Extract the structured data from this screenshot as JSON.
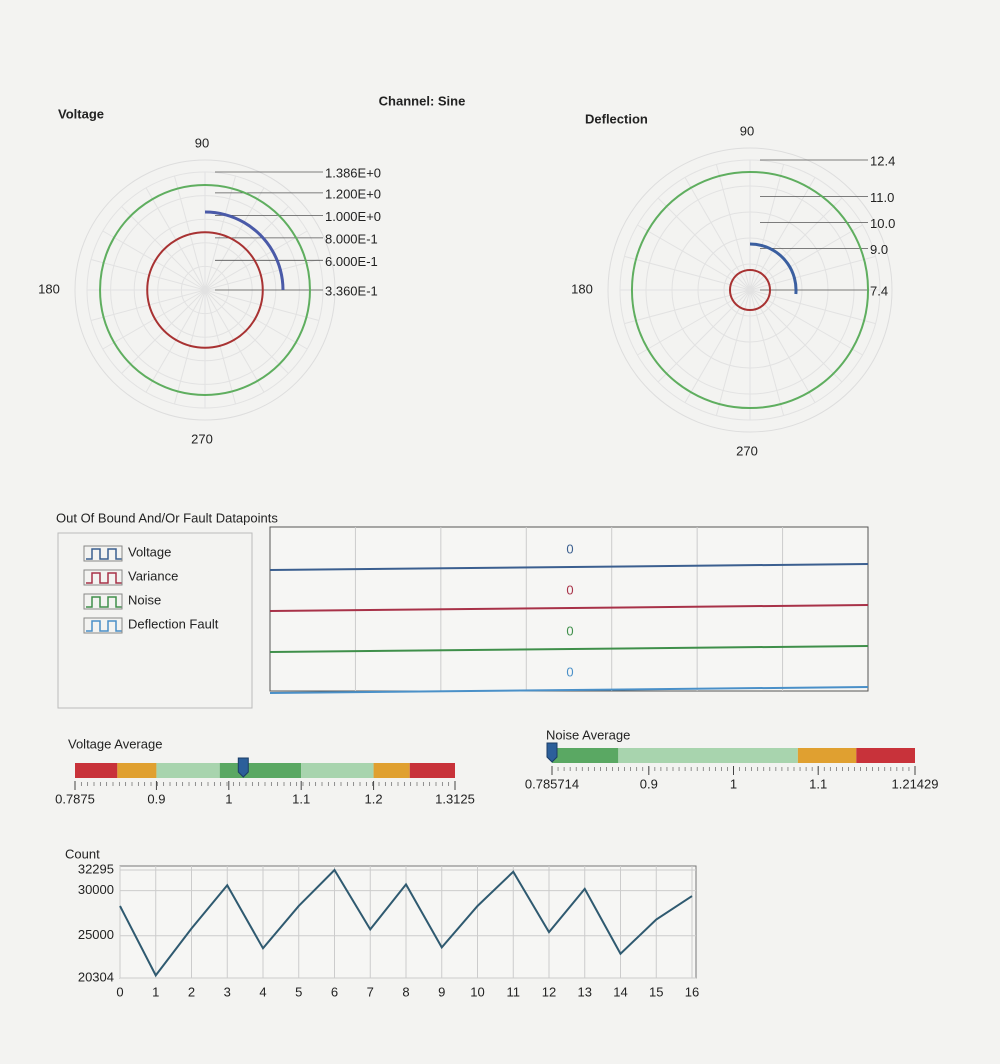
{
  "header": {
    "channel": "Channel: Sine"
  },
  "chart_data": [
    {
      "type": "polar",
      "title": "Voltage",
      "angle_ticks": [
        90,
        180,
        270
      ],
      "rlim": [
        0.336,
        1.386
      ],
      "rticks": [
        {
          "value": 1.386,
          "label": "1.386E+0"
        },
        {
          "value": 1.2,
          "label": "1.200E+0"
        },
        {
          "value": 1.0,
          "label": "1.000E+0"
        },
        {
          "value": 0.8,
          "label": "8.000E-1"
        },
        {
          "value": 0.6,
          "label": "6.000E-1"
        },
        {
          "value": 0.336,
          "label": "3.360E-1"
        }
      ],
      "series": [
        {
          "color": "#5fae5f",
          "theta": [
            0,
            30,
            60,
            90,
            120,
            150,
            180,
            210,
            240,
            270,
            300,
            330,
            360
          ],
          "r": [
            1.27,
            1.27,
            1.27,
            1.27,
            1.27,
            1.27,
            1.27,
            1.27,
            1.27,
            1.27,
            1.27,
            1.27,
            1.27
          ]
        },
        {
          "color": "#a83232",
          "theta": [
            0,
            30,
            60,
            90,
            120,
            150,
            180,
            210,
            240,
            270,
            300,
            330,
            360
          ],
          "r": [
            0.85,
            0.85,
            0.85,
            0.85,
            0.85,
            0.85,
            0.85,
            0.85,
            0.85,
            0.85,
            0.85,
            0.85,
            0.85
          ]
        },
        {
          "color": "#4a5aa8",
          "theta": [
            0,
            15,
            30,
            45,
            60,
            75,
            90
          ],
          "r": [
            1.03,
            1.03,
            1.03,
            1.03,
            1.03,
            1.03,
            1.03
          ]
        }
      ]
    },
    {
      "type": "polar",
      "title": "Deflection",
      "angle_ticks": [
        90,
        180,
        270
      ],
      "rlim": [
        7.4,
        12.4
      ],
      "rticks": [
        12.4,
        {
          "value": 11,
          "label": "11.0"
        },
        {
          "value": 10,
          "label": "10.0"
        },
        {
          "value": 9,
          "label": "9.0"
        },
        7.4
      ],
      "series": [
        {
          "color": "#5fae5f",
          "theta": [
            0,
            30,
            60,
            90,
            120,
            150,
            180,
            210,
            240,
            270,
            300,
            330,
            360
          ],
          "r": [
            11.94,
            11.94,
            11.94,
            11.94,
            11.94,
            11.94,
            11.94,
            11.94,
            11.94,
            11.94,
            11.94,
            11.94,
            11.94
          ]
        },
        {
          "color": "#a83232",
          "theta": [
            0,
            30,
            60,
            90,
            120,
            150,
            180,
            210,
            240,
            270,
            300,
            330,
            360
          ],
          "r": [
            8.17,
            8.17,
            8.17,
            8.17,
            8.17,
            8.17,
            8.17,
            8.17,
            8.17,
            8.17,
            8.17,
            8.17,
            8.17
          ]
        },
        {
          "color": "#3b5fa0",
          "theta": [
            -5,
            15,
            35,
            55,
            75,
            90
          ],
          "r": [
            9.17,
            9.17,
            9.17,
            9.17,
            9.17,
            9.17
          ]
        }
      ]
    },
    {
      "type": "digital",
      "title": "Out Of Bound And/Or Fault Datapoints",
      "series": [
        {
          "name": "Voltage",
          "color": "#3b5f8f",
          "values": [
            0
          ]
        },
        {
          "name": "Variance",
          "color": "#a83248",
          "values": [
            0
          ]
        },
        {
          "name": "Noise",
          "color": "#3f8f4a",
          "values": [
            0
          ]
        },
        {
          "name": "Deflection Fault",
          "color": "#4a90c8",
          "values": [
            0
          ]
        }
      ]
    },
    {
      "type": "slide",
      "title": "Voltage Average",
      "xlim": [
        0.7875,
        1.3125
      ],
      "xticks": [
        0.7875,
        0.9,
        1,
        1.1,
        1.2,
        1.3125
      ],
      "value": 1.02,
      "ranges": [
        {
          "from": 0.7875,
          "to": 0.846,
          "color": "#c8323a"
        },
        {
          "from": 0.846,
          "to": 0.9,
          "color": "#e0a030"
        },
        {
          "from": 0.9,
          "to": 0.9875,
          "color": "#a8d4ae"
        },
        {
          "from": 0.9875,
          "to": 1.1,
          "color": "#5aa863"
        },
        {
          "from": 1.1,
          "to": 1.2,
          "color": "#a8d4ae"
        },
        {
          "from": 1.2,
          "to": 1.25,
          "color": "#e0a030"
        },
        {
          "from": 1.25,
          "to": 1.3125,
          "color": "#c8323a"
        }
      ]
    },
    {
      "type": "slide",
      "title": "Noise Average",
      "xlim": [
        0.785714,
        1.21429
      ],
      "xticks": [
        0.785714,
        0.9,
        1,
        1.1,
        1.21429
      ],
      "value": 0.785714,
      "ranges": [
        {
          "from": 0.785714,
          "to": 0.864,
          "color": "#5aa863"
        },
        {
          "from": 0.864,
          "to": 1.076,
          "color": "#a8d4ae"
        },
        {
          "from": 1.076,
          "to": 1.145,
          "color": "#e0a030"
        },
        {
          "from": 1.145,
          "to": 1.21429,
          "color": "#c8323a"
        }
      ]
    },
    {
      "type": "line",
      "ylabel": "Count",
      "color": "#2f5a70",
      "x": [
        0,
        1,
        2,
        3,
        4,
        5,
        6,
        7,
        8,
        9,
        10,
        11,
        12,
        13,
        14,
        15,
        16
      ],
      "values": [
        28300,
        20600,
        25800,
        30600,
        23600,
        28300,
        32295,
        25700,
        30700,
        23700,
        28300,
        32100,
        25400,
        30200,
        23000,
        26800,
        29400
      ],
      "xlim": [
        0,
        16
      ],
      "xticks": [
        0,
        1,
        2,
        3,
        4,
        5,
        6,
        7,
        8,
        9,
        10,
        11,
        12,
        13,
        14,
        15,
        16
      ],
      "ylim": [
        20304,
        32295
      ],
      "yticks": [
        20304,
        25000,
        30000,
        32295
      ],
      "grid": true
    }
  ]
}
